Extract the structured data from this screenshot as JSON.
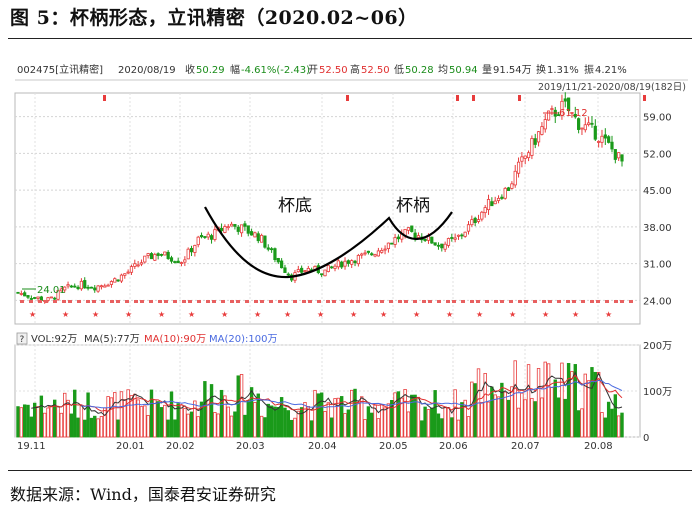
{
  "figure": {
    "title": "图 5：杯柄形态，立讯精密（2020.02~06）",
    "source": "数据来源：Wind，国泰君安证券研究"
  },
  "header": {
    "code": "002475[立讯精密]",
    "date": "2020/08/19",
    "items": [
      {
        "label": "收",
        "value": "50.29",
        "color": "#1a8c1a"
      },
      {
        "label": "幅",
        "value": "-4.61%(-2.43)",
        "color": "#1a8c1a"
      },
      {
        "label": "开",
        "value": "52.50",
        "color": "#e03030"
      },
      {
        "label": "高",
        "value": "52.50",
        "color": "#e03030"
      },
      {
        "label": "低",
        "value": "50.28",
        "color": "#1a8c1a"
      },
      {
        "label": "均",
        "value": "50.94",
        "color": "#1a8c1a"
      },
      {
        "label": "量",
        "value": "91.54万",
        "color": "#333333"
      },
      {
        "label": "换",
        "value": "1.31%",
        "color": "#333333"
      },
      {
        "label": "振",
        "value": "4.21%",
        "color": "#333333"
      }
    ],
    "range": "2019/11/21-2020/08/19(182日)"
  },
  "annotations": {
    "cup": "杯底",
    "handle": "杯柄",
    "high": "61.12",
    "low": "24.01"
  },
  "volume_legend": {
    "q": "?",
    "vol": "VOL:92万",
    "ma5": "MA(5):77万",
    "ma10": "MA(10):90万",
    "ma20": "MA(20):100万"
  },
  "colors": {
    "up": "#e83c3c",
    "down": "#1a9a1a",
    "curve": "#000000",
    "ma5": "#333333",
    "ma10": "#e03030",
    "ma20": "#4a6ae0"
  },
  "chart_data": [
    {
      "type": "candlestick",
      "y_ticks": [
        59.0,
        52.0,
        45.0,
        38.0,
        31.0,
        24.0
      ],
      "ylim": [
        19.5,
        63.5
      ],
      "x_ticks": [
        "19.11",
        "20.01",
        "20.02",
        "20.03",
        "20.04",
        "20.05",
        "20.06",
        "20.07",
        "20.08"
      ],
      "grid": true,
      "overlay": "cup-and-handle curve",
      "close_path": [
        [
          "2019-11-21",
          25.5
        ],
        [
          "2019-11-28",
          24.6
        ],
        [
          "2019-12-05",
          24.01
        ],
        [
          "2019-12-12",
          26.2
        ],
        [
          "2019-12-19",
          27.0
        ],
        [
          "2019-12-26",
          26.6
        ],
        [
          "2020-01-03",
          27.8
        ],
        [
          "2020-01-10",
          29.5
        ],
        [
          "2020-01-17",
          31.8
        ],
        [
          "2020-01-23",
          33.0
        ],
        [
          "2020-02-03",
          31.5
        ],
        [
          "2020-02-10",
          35.5
        ],
        [
          "2020-02-17",
          36.5
        ],
        [
          "2020-02-24",
          38.5
        ],
        [
          "2020-03-02",
          37.5
        ],
        [
          "2020-03-09",
          36.0
        ],
        [
          "2020-03-16",
          32.0
        ],
        [
          "2020-03-23",
          28.5
        ],
        [
          "2020-03-30",
          30.0
        ],
        [
          "2020-04-07",
          29.5
        ],
        [
          "2020-04-14",
          31.0
        ],
        [
          "2020-04-21",
          32.0
        ],
        [
          "2020-04-28",
          32.8
        ],
        [
          "2020-05-08",
          35.5
        ],
        [
          "2020-05-15",
          37.0
        ],
        [
          "2020-05-22",
          36.0
        ],
        [
          "2020-05-29",
          34.5
        ],
        [
          "2020-06-05",
          35.5
        ],
        [
          "2020-06-12",
          38.5
        ],
        [
          "2020-06-19",
          42.0
        ],
        [
          "2020-06-29",
          45.5
        ],
        [
          "2020-07-03",
          49.0
        ],
        [
          "2020-07-10",
          54.0
        ],
        [
          "2020-07-17",
          59.0
        ],
        [
          "2020-07-24",
          61.12
        ],
        [
          "2020-07-31",
          57.5
        ],
        [
          "2020-08-07",
          56.0
        ],
        [
          "2020-08-14",
          53.0
        ],
        [
          "2020-08-19",
          50.29
        ]
      ]
    },
    {
      "type": "bar",
      "name": "volume",
      "y_ticks": [
        "200万",
        "100万",
        "0"
      ],
      "ylim": [
        0,
        200
      ]
    }
  ]
}
